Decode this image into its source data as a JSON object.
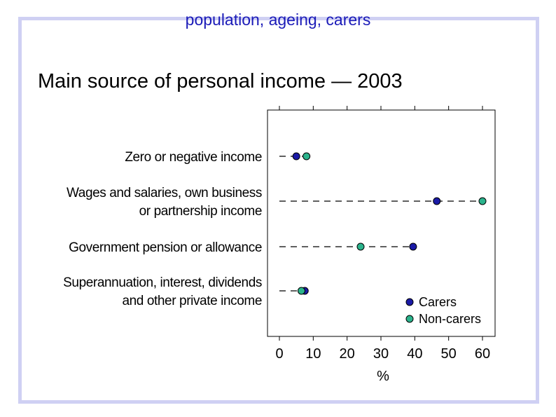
{
  "header": {
    "title": "population, ageing, carers"
  },
  "slide": {
    "title": "Main source of personal income — 2003"
  },
  "chart_data": {
    "type": "scatter",
    "subtype": "dot-plot",
    "title": "Main source of personal income — 2003",
    "xlabel": "%",
    "xlim": [
      -3,
      63
    ],
    "xticks": [
      0,
      10,
      20,
      30,
      40,
      50,
      60
    ],
    "grid": false,
    "legend_position": "bottom-right",
    "categories": [
      [
        "Zero or negative income"
      ],
      [
        "Wages and salaries, own business",
        "or partnership income"
      ],
      [
        "Government pension or allowance"
      ],
      [
        "Superannuation, interest, dividends",
        "and other private income"
      ]
    ],
    "series": [
      {
        "name": "Carers",
        "color": "#1a1aa6",
        "values": [
          5,
          46.5,
          39.5,
          7.5
        ]
      },
      {
        "name": "Non-carers",
        "color": "#2bb38c",
        "values": [
          8,
          60,
          24,
          6.5
        ]
      }
    ]
  }
}
